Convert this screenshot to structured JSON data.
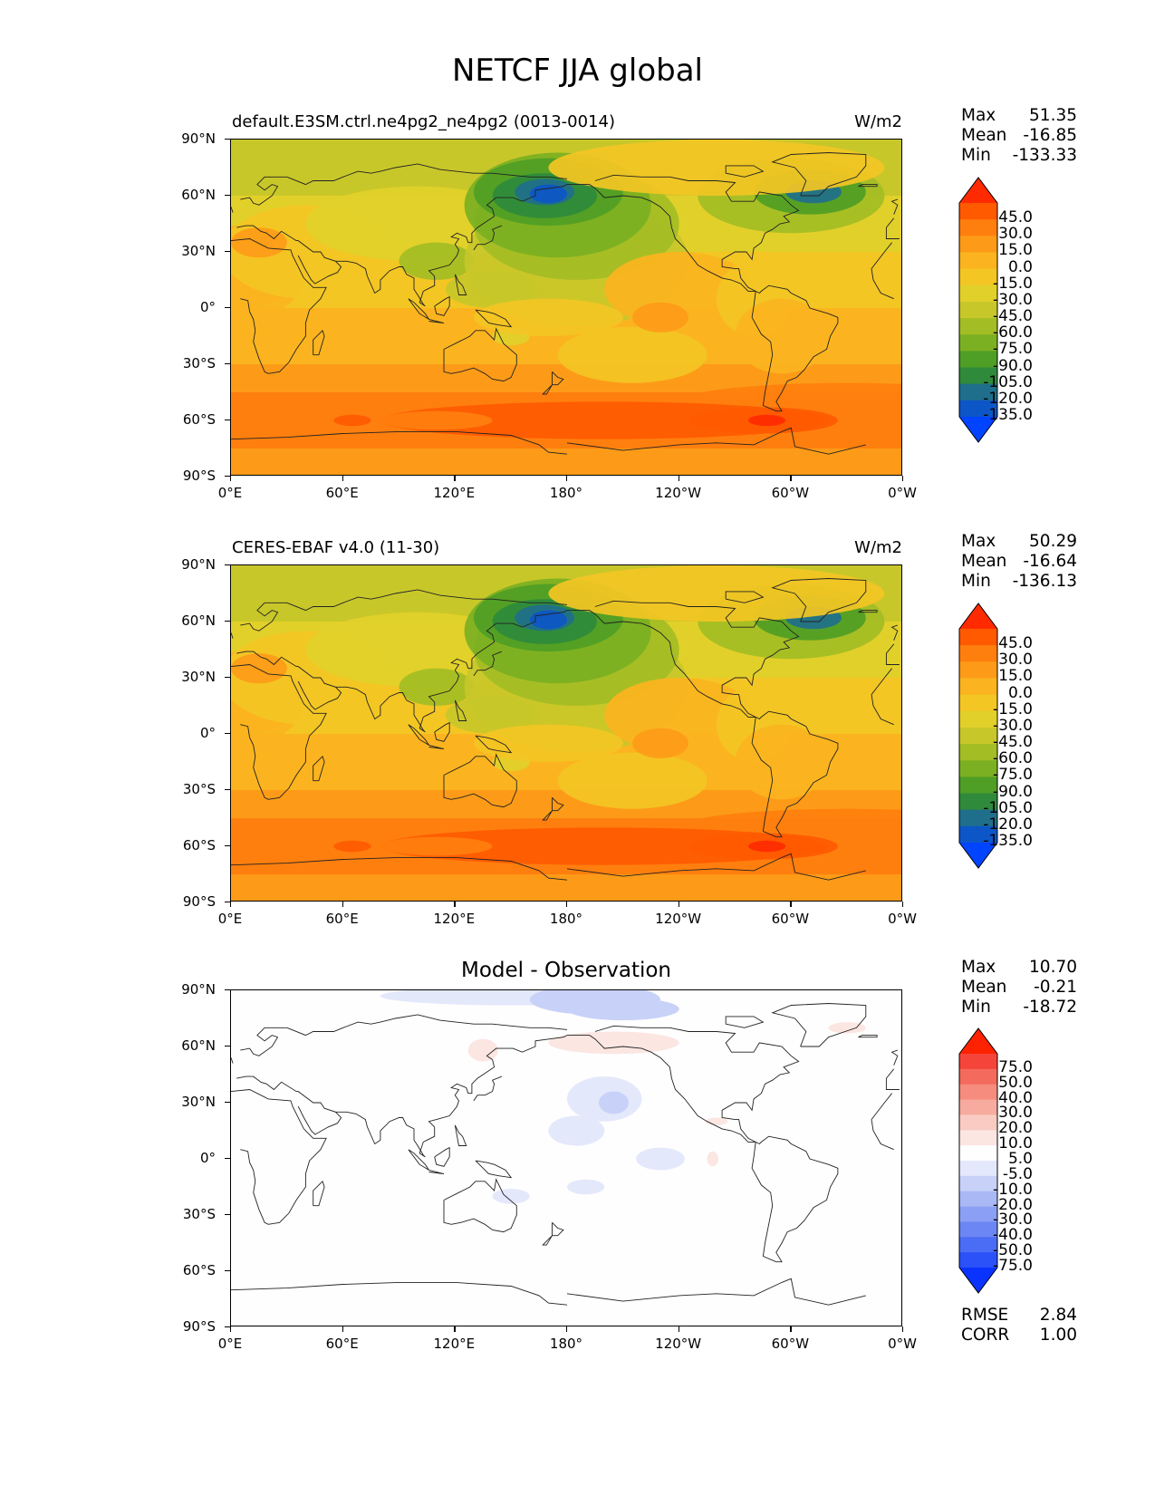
{
  "title": "NETCF JJA global",
  "lat_ticks": [
    "90°N",
    "60°N",
    "30°N",
    "0°",
    "30°S",
    "60°S",
    "90°S"
  ],
  "lon_ticks": [
    "0°E",
    "60°E",
    "120°E",
    "180°",
    "120°W",
    "60°W",
    "0°W"
  ],
  "panels": [
    {
      "label": "default.E3SM.ctrl.ne4pg2_ne4pg2 (0013-0014)",
      "units": "W/m2",
      "center_title": "",
      "stats": {
        "max_label": "Max",
        "max": "51.35",
        "mean_label": "Mean",
        "mean": "-16.85",
        "min_label": "Min",
        "min": "-133.33"
      },
      "colorbar_type": "field"
    },
    {
      "label": "CERES-EBAF v4.0 (11-30)",
      "units": "W/m2",
      "center_title": "",
      "stats": {
        "max_label": "Max",
        "max": "50.29",
        "mean_label": "Mean",
        "mean": "-16.64",
        "min_label": "Min",
        "min": "-136.13"
      },
      "colorbar_type": "field"
    },
    {
      "label": "",
      "units": "",
      "center_title": "Model - Observation",
      "stats": {
        "max_label": "Max",
        "max": "10.70",
        "mean_label": "Mean",
        "mean": "-0.21",
        "min_label": "Min",
        "min": "-18.72"
      },
      "colorbar_type": "diff",
      "metrics": {
        "rmse_label": "RMSE",
        "rmse": "2.84",
        "corr_label": "CORR",
        "corr": "1.00"
      }
    }
  ],
  "colorbar_field": {
    "labels": [
      "45.0",
      "30.0",
      "15.0",
      "0.0",
      "-15.0",
      "-30.0",
      "-45.0",
      "-60.0",
      "-75.0",
      "-90.0",
      "-105.0",
      "-120.0",
      "-135.0"
    ],
    "colors": [
      "#ff2a00",
      "#ff5a00",
      "#ff7f0e",
      "#fd9b18",
      "#fbb41f",
      "#f3c624",
      "#e2d02a",
      "#c8c72a",
      "#a3bd24",
      "#7bb022",
      "#4f9e25",
      "#2f8a3c",
      "#1f6f8c",
      "#0d56c7",
      "#0044ff"
    ]
  },
  "colorbar_diff": {
    "labels": [
      "75.0",
      "50.0",
      "40.0",
      "30.0",
      "20.0",
      "10.0",
      "5.0",
      "-5.0",
      "-10.0",
      "-20.0",
      "-30.0",
      "-40.0",
      "-50.0",
      "-75.0"
    ],
    "colors": [
      "#ff2200",
      "#f5453a",
      "#f46a5c",
      "#f58c7e",
      "#f7ab9f",
      "#f9cbc3",
      "#fbe6e2",
      "#fefefe",
      "#e4e8fb",
      "#c8d1f8",
      "#aab8f6",
      "#8ba0f4",
      "#6c86f3",
      "#4b6cf4",
      "#2a52f8",
      "#0a33ff"
    ]
  }
}
